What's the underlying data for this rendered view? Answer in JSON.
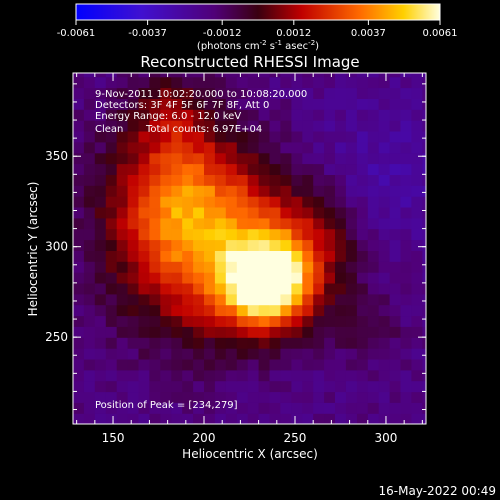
{
  "colorbar": {
    "ticks": [
      "-0.0061",
      "-0.0037",
      "-0.0012",
      "0.0012",
      "0.0037",
      "0.0061"
    ],
    "units_prefix": "(photons cm",
    "units_exp1": "-2",
    "units_mid": " s",
    "units_exp2": "-1",
    "units_mid2": " asec",
    "units_exp3": "-2",
    "units_suffix": ")"
  },
  "chart_data": {
    "type": "heatmap",
    "title": "Reconstructed RHESSI Image",
    "xlabel": "Heliocentric X (arcsec)",
    "ylabel": "Heliocentric Y (arcsec)",
    "xlim": [
      128,
      322
    ],
    "ylim": [
      202,
      396
    ],
    "x_ticks": [
      "150",
      "200",
      "250",
      "300"
    ],
    "y_ticks": [
      "250",
      "300",
      "350"
    ],
    "annotations": [
      "9-Nov-2011 10:02:20.000 to 10:08:20.000",
      "Detectors: 3F 4F 5F 6F 7F 8F, Att 0",
      "Energy Range: 6.0 - 12.0 keV",
      "Clean",
      "Total counts: 6.97E+04",
      "Position of Peak = [234,279]"
    ],
    "peak": [
      234,
      279
    ],
    "value_range": [
      -0.0061,
      0.0061
    ]
  },
  "footer_timestamp": "16-May-2022 00:49"
}
